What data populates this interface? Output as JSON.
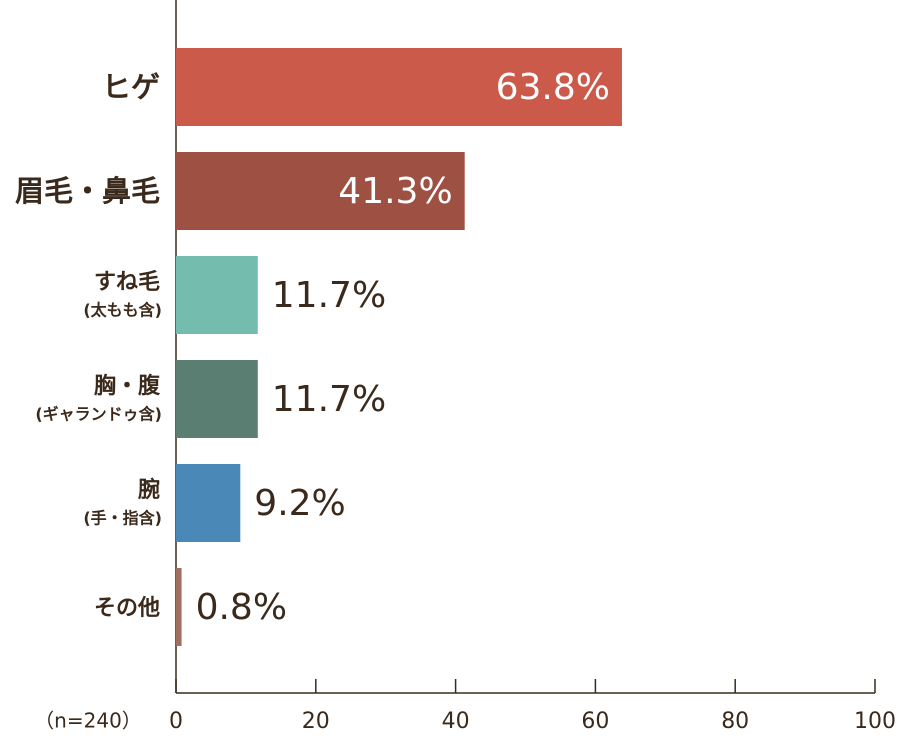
{
  "chart_data": {
    "type": "bar",
    "orientation": "horizontal",
    "categories": [
      {
        "label": "ヒゲ"
      },
      {
        "label": "眉毛・鼻毛"
      },
      {
        "label": "すね毛",
        "note": "(太もも含)"
      },
      {
        "label": "胸・腹",
        "note": "(ギャランドゥ含)"
      },
      {
        "label": "腕",
        "note": "(手・指含)"
      },
      {
        "label": "その他"
      }
    ],
    "values": [
      63.8,
      41.3,
      11.7,
      11.7,
      9.2,
      0.8
    ],
    "value_labels": [
      "63.8%",
      "41.3%",
      "11.7%",
      "11.7%",
      "9.2%",
      "0.8%"
    ],
    "colors": [
      "#cc5a4b",
      "#9e5043",
      "#74bcae",
      "#5a7f72",
      "#4a88b8",
      "#a26f5f"
    ],
    "xlim": [
      0,
      100
    ],
    "xticks": [
      0,
      20,
      40,
      60,
      80,
      100
    ],
    "annotation": "（n=240）"
  }
}
